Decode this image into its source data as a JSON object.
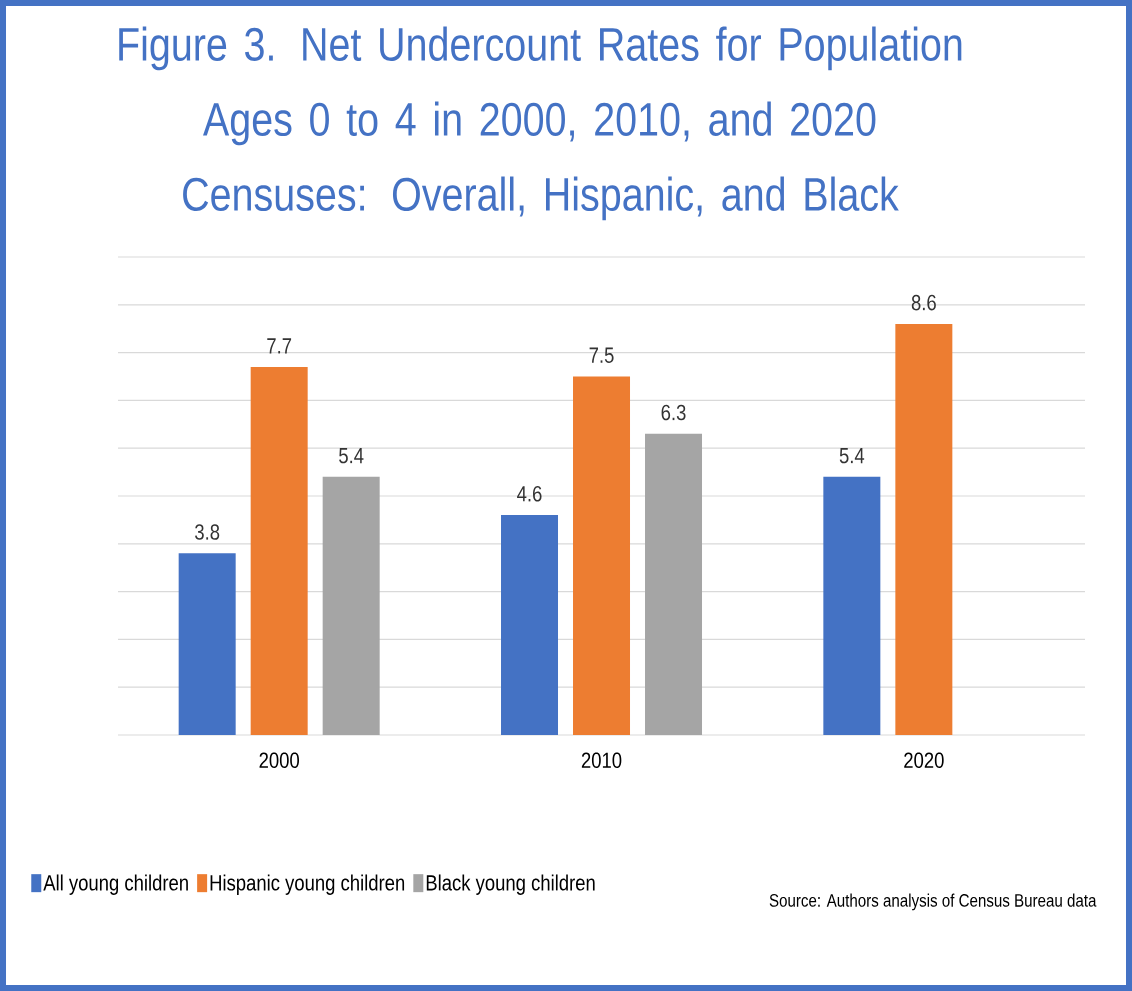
{
  "chart_data": {
    "type": "bar",
    "title": "Figure 3. Net Undercount Rates for Population Ages 0 to 4 in 2000, 2010, and 2020 Censuses: Overall, Hispanic, and Black",
    "categories": [
      "2000",
      "2010",
      "2020"
    ],
    "series": [
      {
        "name": "All young children",
        "color": "#4472c4",
        "values": [
          3.8,
          4.6,
          5.4
        ]
      },
      {
        "name": "Hispanic young children",
        "color": "#ed7d31",
        "values": [
          7.7,
          7.5,
          8.6
        ]
      },
      {
        "name": "Black young children",
        "color": "#a5a5a5",
        "values": [
          5.4,
          6.3,
          null
        ]
      }
    ],
    "ylim": [
      0,
      10
    ],
    "yticks": [
      {
        "value": 0,
        "label": null
      },
      {
        "value": 1,
        "label": null
      },
      {
        "value": 2,
        "label": null
      },
      {
        "value": 3,
        "label": null
      },
      {
        "value": 4,
        "label": null
      },
      {
        "value": 5,
        "label": null
      },
      {
        "value": 6,
        "label": null
      },
      {
        "value": 7,
        "label": null
      },
      {
        "value": 8,
        "label": null
      },
      {
        "value": 9,
        "label": null
      },
      {
        "value": 10,
        "label": null
      }
    ],
    "tick_labels": "x",
    "grid": "y",
    "legend": "bottom left",
    "data_labels": true,
    "annotations": [
      "Source: Authors analysis of Census Bureau  data"
    ]
  }
}
